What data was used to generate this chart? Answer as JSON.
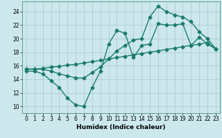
{
  "title": "",
  "xlabel": "Humidex (Indice chaleur)",
  "bg_color": "#cce8ec",
  "grid_color": "#aacdd4",
  "line_color": "#1a7a6e",
  "xlim": [
    -0.5,
    23.5
  ],
  "ylim": [
    9,
    25.5
  ],
  "xticks": [
    0,
    1,
    2,
    3,
    4,
    5,
    6,
    7,
    8,
    9,
    10,
    11,
    12,
    13,
    14,
    15,
    16,
    17,
    18,
    19,
    20,
    21,
    22,
    23
  ],
  "yticks": [
    10,
    12,
    14,
    16,
    18,
    20,
    22,
    24
  ],
  "series1_x": [
    0,
    1,
    2,
    3,
    4,
    5,
    6,
    7,
    8,
    9,
    10,
    11,
    12,
    13,
    14,
    15,
    16,
    17,
    18,
    19,
    20,
    21,
    22,
    23
  ],
  "series1_y": [
    15.2,
    15.2,
    14.8,
    13.8,
    12.8,
    11.2,
    10.2,
    10.0,
    12.8,
    15.2,
    19.2,
    21.2,
    20.8,
    17.2,
    19.0,
    19.2,
    22.2,
    22.0,
    22.0,
    22.2,
    19.0,
    20.2,
    19.2,
    18.5
  ],
  "series2_x": [
    0,
    1,
    2,
    3,
    4,
    5,
    6,
    7,
    8,
    9,
    10,
    11,
    12,
    13,
    14,
    15,
    16,
    17,
    18,
    19,
    20,
    21,
    22,
    23
  ],
  "series2_y": [
    15.5,
    15.5,
    15.6,
    15.8,
    15.9,
    16.1,
    16.2,
    16.4,
    16.6,
    16.8,
    17.0,
    17.2,
    17.4,
    17.6,
    17.8,
    18.0,
    18.2,
    18.4,
    18.6,
    18.8,
    19.0,
    19.2,
    19.4,
    18.5
  ],
  "series3_x": [
    0,
    1,
    2,
    3,
    4,
    5,
    6,
    7,
    8,
    9,
    10,
    11,
    12,
    13,
    14,
    15,
    16,
    17,
    18,
    19,
    20,
    21,
    22,
    23
  ],
  "series3_y": [
    15.5,
    15.5,
    15.5,
    15.2,
    14.8,
    14.5,
    14.2,
    14.2,
    15.0,
    15.8,
    17.0,
    18.2,
    19.0,
    19.8,
    20.0,
    23.2,
    24.8,
    24.0,
    23.5,
    23.2,
    22.5,
    21.0,
    20.0,
    18.5
  ],
  "marker": "D",
  "markersize": 2.5,
  "linewidth": 1.0
}
